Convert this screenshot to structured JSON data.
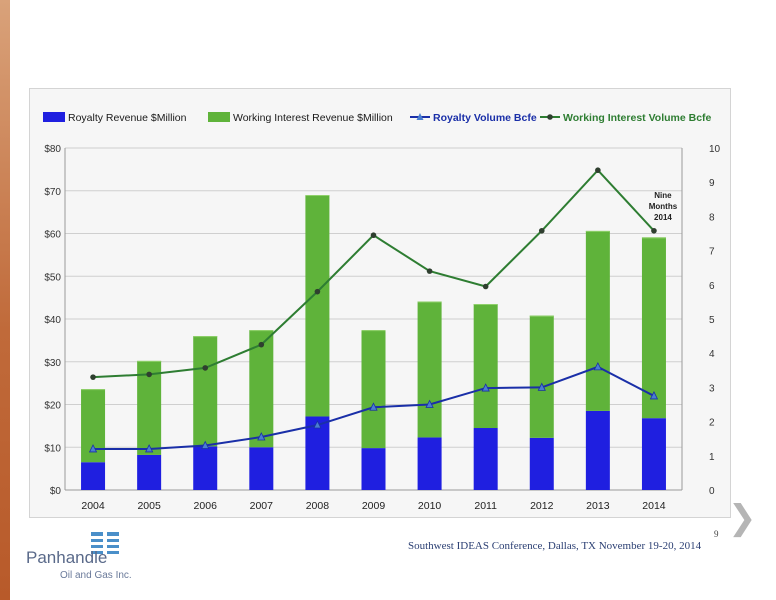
{
  "page": {
    "footer_text": "Southwest IDEAS Conference, Dallas, TX November 19-20, 2014",
    "page_number": "9",
    "logo_name": "Panhandle",
    "logo_sub": "Oil and Gas Inc."
  },
  "chart_data": {
    "type": "bar",
    "stacked": true,
    "categories": [
      "2004",
      "2005",
      "2006",
      "2007",
      "2008",
      "2009",
      "2010",
      "2011",
      "2012",
      "2013",
      "2014"
    ],
    "series": [
      {
        "name": "Royalty Revenue $Million",
        "kind": "bar",
        "axis": "left",
        "color": "#1f1fe0",
        "values": [
          6.5,
          8.2,
          10.2,
          10.0,
          17.2,
          9.8,
          12.3,
          14.5,
          12.2,
          18.5,
          16.8
        ]
      },
      {
        "name": "Working Interest Revenue $Million",
        "kind": "bar",
        "axis": "left",
        "color": "#5fb33a",
        "values": [
          17.1,
          22.0,
          25.8,
          27.4,
          51.8,
          27.6,
          31.8,
          29.0,
          28.6,
          42.1,
          42.3
        ]
      },
      {
        "name": "Royalty Volume Bcfe",
        "kind": "line",
        "axis": "right",
        "color": "#1a2fa8",
        "marker": "triangle",
        "values": [
          1.2,
          1.2,
          1.3,
          1.55,
          1.9,
          2.42,
          2.5,
          2.98,
          3.0,
          3.6,
          2.75
        ]
      },
      {
        "name": "Working Interest Volume Bcfe",
        "kind": "line",
        "axis": "right",
        "color": "#2e7d32",
        "marker": "circle",
        "values": [
          3.3,
          3.38,
          3.57,
          4.25,
          5.8,
          7.45,
          6.4,
          5.95,
          7.58,
          9.35,
          7.58
        ]
      }
    ],
    "left_ticks": [
      "$0",
      "$10",
      "$20",
      "$30",
      "$40",
      "$50",
      "$60",
      "$70",
      "$80"
    ],
    "right_ticks": [
      "0",
      "1",
      "2",
      "3",
      "4",
      "5",
      "6",
      "7",
      "8",
      "9",
      "10"
    ],
    "ylim_left": [
      0,
      80
    ],
    "ylim_right": [
      0,
      10
    ],
    "annotation": [
      "Nine",
      "Months",
      "2014"
    ],
    "legend_position": "top",
    "grid": true
  }
}
